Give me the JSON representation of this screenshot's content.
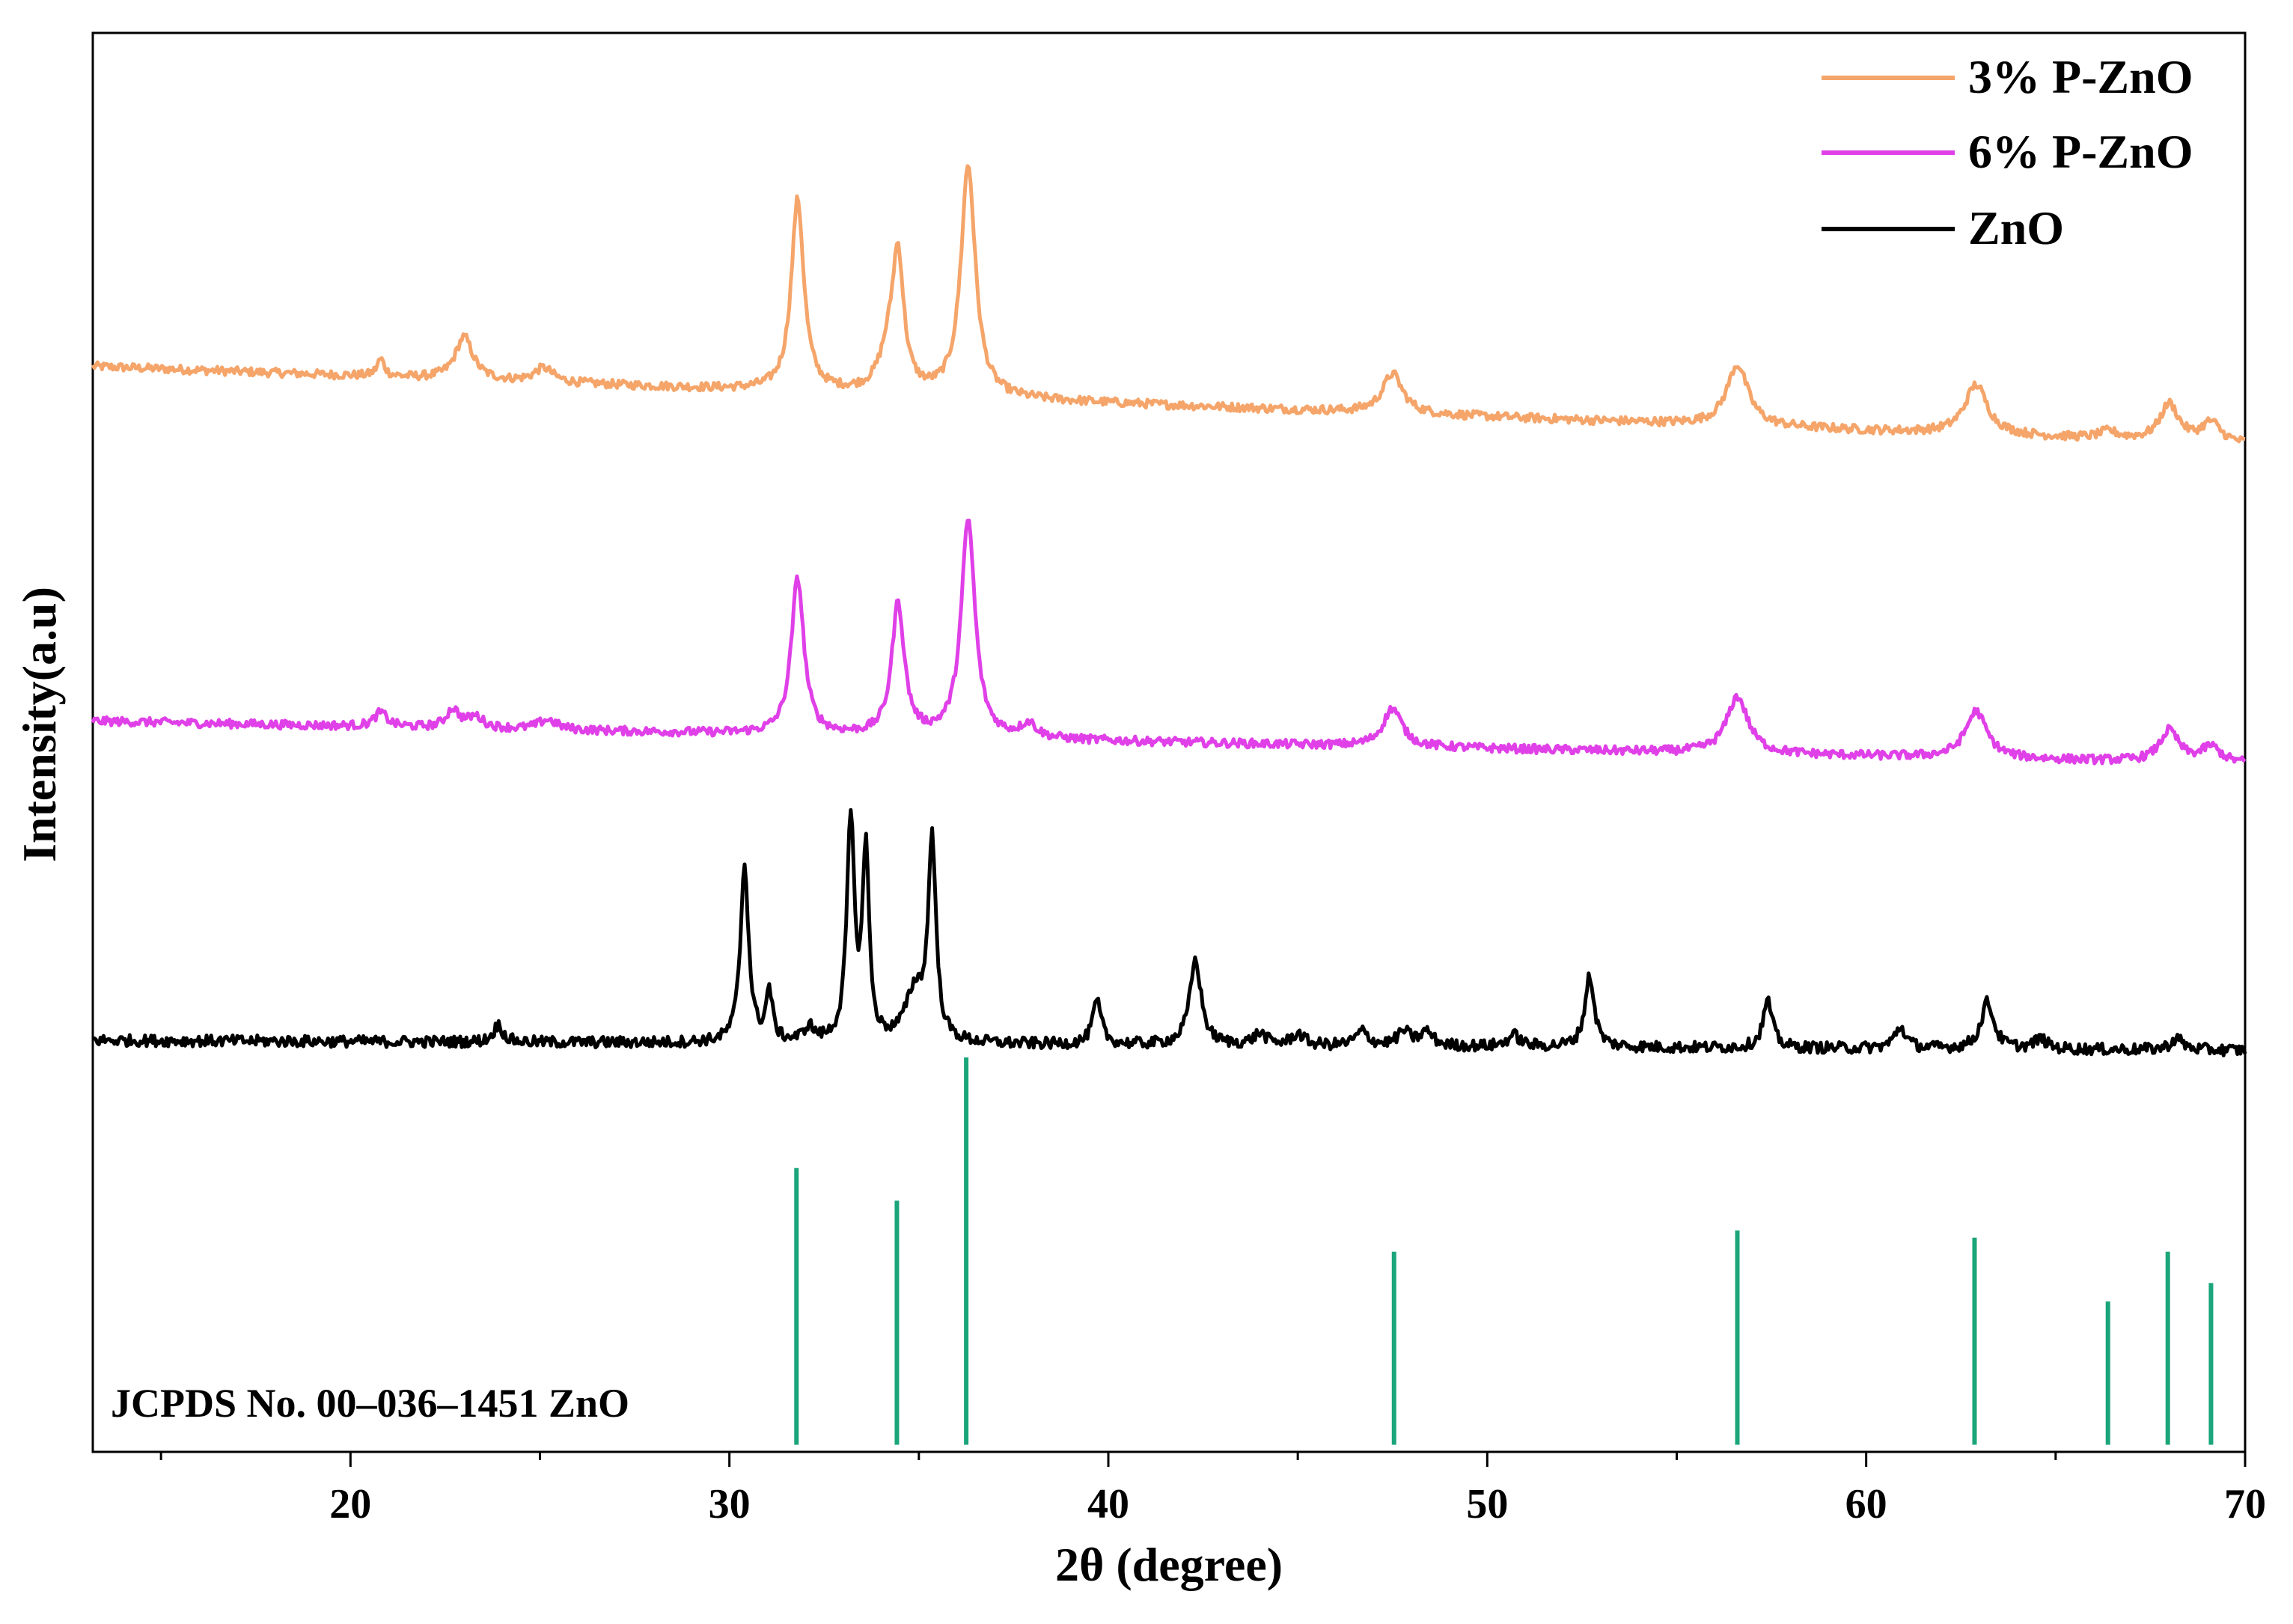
{
  "chart_data": {
    "type": "line",
    "xlabel": "2θ (degree)",
    "ylabel": "Intensity(a.u)",
    "xlim": [
      13.2,
      70
    ],
    "x_ticks": [
      20,
      30,
      40,
      50,
      60,
      70
    ],
    "y_ticks_shown": false,
    "grid": false,
    "legend_position": "top-right",
    "series": [
      {
        "name": "3% P-ZnO",
        "color": "#f5a56a",
        "baseline_start": 0.765,
        "baseline_end": 0.71,
        "noise": 0.003,
        "peaks": [
          {
            "x": 20.8,
            "h": 0.012,
            "w": 0.12
          },
          {
            "x": 23.0,
            "h": 0.03,
            "w": 0.28
          },
          {
            "x": 25.1,
            "h": 0.01,
            "w": 0.3
          },
          {
            "x": 31.8,
            "h": 0.135,
            "w": 0.2
          },
          {
            "x": 34.2,
            "h": 0.025,
            "w": 0.3
          },
          {
            "x": 34.45,
            "h": 0.09,
            "w": 0.18
          },
          {
            "x": 36.3,
            "h": 0.163,
            "w": 0.23
          },
          {
            "x": 47.5,
            "h": 0.028,
            "w": 0.32
          },
          {
            "x": 56.6,
            "h": 0.043,
            "w": 0.34
          },
          {
            "x": 62.9,
            "h": 0.035,
            "w": 0.36
          },
          {
            "x": 66.4,
            "h": 0.005,
            "w": 0.3
          },
          {
            "x": 68.0,
            "h": 0.026,
            "w": 0.3
          },
          {
            "x": 69.1,
            "h": 0.014,
            "w": 0.3
          }
        ]
      },
      {
        "name": "6% P-ZnO",
        "color": "#e040e8",
        "baseline_start": 0.515,
        "baseline_end": 0.485,
        "noise": 0.003,
        "peaks": [
          {
            "x": 20.8,
            "h": 0.01,
            "w": 0.2
          },
          {
            "x": 22.7,
            "h": 0.013,
            "w": 0.2
          },
          {
            "x": 23.3,
            "h": 0.008,
            "w": 0.25
          },
          {
            "x": 25.2,
            "h": 0.007,
            "w": 0.3
          },
          {
            "x": 31.8,
            "h": 0.11,
            "w": 0.2
          },
          {
            "x": 34.45,
            "h": 0.093,
            "w": 0.2
          },
          {
            "x": 36.3,
            "h": 0.153,
            "w": 0.22
          },
          {
            "x": 37.9,
            "h": 0.01,
            "w": 0.25
          },
          {
            "x": 47.5,
            "h": 0.027,
            "w": 0.3
          },
          {
            "x": 56.6,
            "h": 0.04,
            "w": 0.34
          },
          {
            "x": 62.9,
            "h": 0.033,
            "w": 0.34
          },
          {
            "x": 68.0,
            "h": 0.022,
            "w": 0.3
          },
          {
            "x": 69.1,
            "h": 0.011,
            "w": 0.3
          }
        ]
      },
      {
        "name": "ZnO",
        "color": "#000000",
        "baseline_start": 0.29,
        "baseline_end": 0.283,
        "noise": 0.004,
        "peaks": [
          {
            "x": 23.9,
            "h": 0.012,
            "w": 0.15
          },
          {
            "x": 30.4,
            "h": 0.125,
            "w": 0.13
          },
          {
            "x": 31.05,
            "h": 0.035,
            "w": 0.1
          },
          {
            "x": 32.1,
            "h": 0.01,
            "w": 0.15
          },
          {
            "x": 33.2,
            "h": 0.155,
            "w": 0.12
          },
          {
            "x": 33.6,
            "h": 0.135,
            "w": 0.1
          },
          {
            "x": 34.9,
            "h": 0.035,
            "w": 0.3
          },
          {
            "x": 35.35,
            "h": 0.14,
            "w": 0.12
          },
          {
            "x": 39.7,
            "h": 0.03,
            "w": 0.14
          },
          {
            "x": 42.3,
            "h": 0.06,
            "w": 0.18
          },
          {
            "x": 44.0,
            "h": 0.008,
            "w": 0.2
          },
          {
            "x": 45.0,
            "h": 0.008,
            "w": 0.2
          },
          {
            "x": 46.7,
            "h": 0.01,
            "w": 0.2
          },
          {
            "x": 47.8,
            "h": 0.01,
            "w": 0.2
          },
          {
            "x": 48.4,
            "h": 0.01,
            "w": 0.2
          },
          {
            "x": 50.7,
            "h": 0.008,
            "w": 0.2
          },
          {
            "x": 52.7,
            "h": 0.05,
            "w": 0.15
          },
          {
            "x": 57.4,
            "h": 0.033,
            "w": 0.15
          },
          {
            "x": 60.9,
            "h": 0.015,
            "w": 0.18
          },
          {
            "x": 63.2,
            "h": 0.033,
            "w": 0.2
          },
          {
            "x": 64.6,
            "h": 0.007,
            "w": 0.2
          },
          {
            "x": 68.2,
            "h": 0.008,
            "w": 0.2
          }
        ]
      }
    ],
    "reference": {
      "label": "JCPDS No. 00–036–1451 ZnO",
      "color": "#1aa57a",
      "baseline": 0.005,
      "lines": [
        {
          "x": 31.77,
          "h": 0.195
        },
        {
          "x": 34.42,
          "h": 0.172
        },
        {
          "x": 36.25,
          "h": 0.273
        },
        {
          "x": 47.54,
          "h": 0.136
        },
        {
          "x": 56.6,
          "h": 0.151
        },
        {
          "x": 62.86,
          "h": 0.146
        },
        {
          "x": 66.38,
          "h": 0.101
        },
        {
          "x": 67.96,
          "h": 0.136
        },
        {
          "x": 69.1,
          "h": 0.114
        }
      ]
    }
  }
}
